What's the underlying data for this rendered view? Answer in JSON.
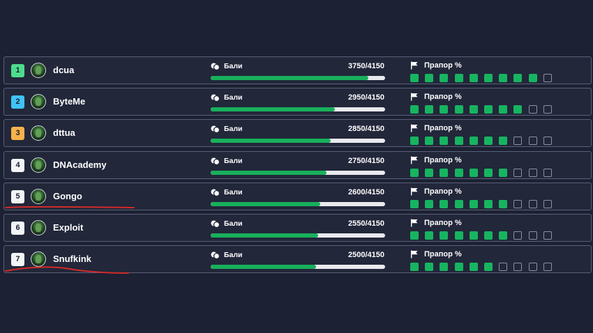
{
  "scoreboard": {
    "points_label": "Бали",
    "flag_label": "Прапор %",
    "max_points": 4150,
    "rows": [
      {
        "rank": "1",
        "rank_color": "#4ddc8c",
        "name": "dcua",
        "score": "3750/4150",
        "points": 3750,
        "flags_captured": 9,
        "flags_total": 10
      },
      {
        "rank": "2",
        "rank_color": "#3fc3f5",
        "name": "ByteMe",
        "score": "2950/4150",
        "points": 2950,
        "flags_captured": 8,
        "flags_total": 10
      },
      {
        "rank": "3",
        "rank_color": "#f8b24a",
        "name": "dttua",
        "score": "2850/4150",
        "points": 2850,
        "flags_captured": 7,
        "flags_total": 10
      },
      {
        "rank": "4",
        "rank_color": "#f3f4f6",
        "name": "DNAcademy",
        "score": "2750/4150",
        "points": 2750,
        "flags_captured": 7,
        "flags_total": 10
      },
      {
        "rank": "5",
        "rank_color": "#f3f4f6",
        "name": "Gongo",
        "score": "2600/4150",
        "points": 2600,
        "flags_captured": 7,
        "flags_total": 10
      },
      {
        "rank": "6",
        "rank_color": "#f3f4f6",
        "name": "Exploit",
        "score": "2550/4150",
        "points": 2550,
        "flags_captured": 7,
        "flags_total": 10
      },
      {
        "rank": "7",
        "rank_color": "#f3f4f6",
        "name": "Snufkink",
        "score": "2500/4150",
        "points": 2500,
        "flags_captured": 6,
        "flags_total": 10
      }
    ]
  },
  "annotations": {
    "underline_color": "#d42a2a",
    "underlined_ranks": [
      "5",
      "7"
    ]
  },
  "icons": {
    "points": "coins-icon",
    "flag": "flag-icon"
  }
}
